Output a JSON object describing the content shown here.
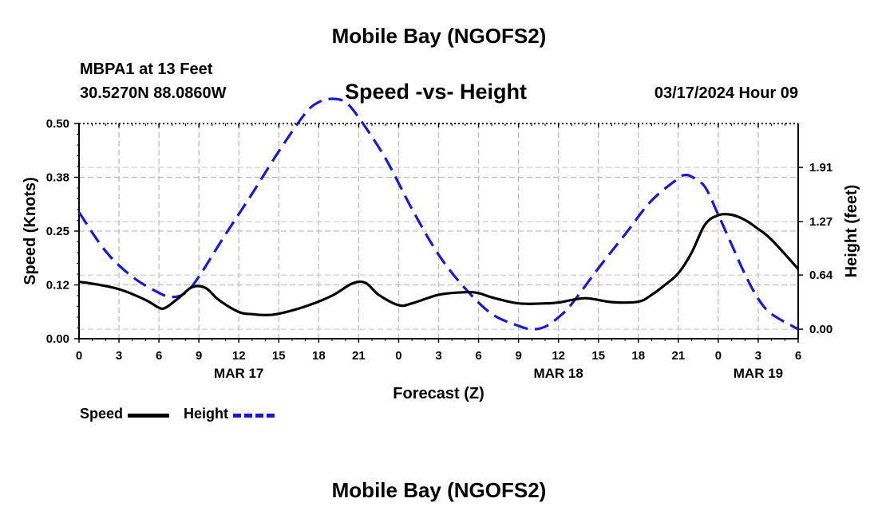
{
  "header": {
    "title": "Mobile Bay (NGOFS2)",
    "station": "MBPA1 at 13 Feet",
    "coords": "30.5270N  88.0860W",
    "datetime": "03/17/2024 Hour 09",
    "footer_title": "Mobile Bay (NGOFS2)"
  },
  "chart_data": {
    "type": "line",
    "title": "Speed -vs- Height",
    "xlabel": "Forecast (Z)",
    "ylabel": "Speed (Knots)",
    "y2label": "Height (feet)",
    "x_hours_range": [
      0,
      54
    ],
    "x_tick_step_hours": 3,
    "x_tick_labels": [
      "0",
      "3",
      "6",
      "9",
      "12",
      "15",
      "18",
      "21",
      "0",
      "3",
      "6",
      "9",
      "12",
      "15",
      "18",
      "21",
      "0",
      "3",
      "6"
    ],
    "date_labels": [
      {
        "label": "MAR 17",
        "hour": 12
      },
      {
        "label": "MAR 18",
        "hour": 36
      },
      {
        "label": "MAR 19",
        "hour": 51
      }
    ],
    "ylim": [
      0,
      0.5
    ],
    "y_tick_values": [
      0,
      0.125,
      0.25,
      0.375,
      0.5
    ],
    "y_tick_labels": [
      "0.00",
      "0.12",
      "0.25",
      "0.38",
      "0.50"
    ],
    "y2_tick_values": [
      0,
      0.64,
      1.27,
      1.91
    ],
    "y2_tick_labels": [
      "0.00",
      "0.64",
      "1.27",
      "1.91"
    ],
    "y2_zero_at_speed": 0.022,
    "y2_feet_per_knot": 5.08,
    "grid": true,
    "legend": "bottom-left",
    "series": [
      {
        "name": "Speed",
        "color": "#000000",
        "style": "solid",
        "x": [
          0,
          1,
          3,
          5,
          6,
          6.5,
          7.5,
          8.5,
          9.5,
          10.5,
          12,
          13,
          14,
          15,
          17,
          19,
          20.5,
          21.5,
          22.5,
          24,
          25,
          27,
          29,
          30,
          31,
          33,
          35,
          36,
          38,
          40,
          42,
          43,
          44,
          45,
          46,
          47,
          48,
          49,
          50,
          51,
          52,
          54
        ],
        "y": [
          0.132,
          0.128,
          0.115,
          0.09,
          0.072,
          0.072,
          0.095,
          0.12,
          0.118,
          0.09,
          0.062,
          0.057,
          0.055,
          0.058,
          0.075,
          0.1,
          0.128,
          0.13,
          0.102,
          0.078,
          0.082,
          0.102,
          0.108,
          0.106,
          0.096,
          0.082,
          0.082,
          0.084,
          0.094,
          0.085,
          0.086,
          0.102,
          0.125,
          0.152,
          0.2,
          0.265,
          0.287,
          0.288,
          0.276,
          0.255,
          0.23,
          0.162
        ]
      },
      {
        "name": "Height",
        "color": "#1a1acd",
        "style": "dashed",
        "x": [
          0,
          2,
          4,
          6,
          7,
          8,
          9,
          11,
          13,
          15,
          17,
          18,
          19,
          20,
          21,
          23,
          25,
          27,
          29,
          31,
          33,
          34,
          35,
          36,
          37,
          39,
          41,
          43,
          45,
          45.5,
          46,
          47,
          48,
          49,
          50,
          51,
          52,
          54
        ],
        "y": [
          1.38,
          0.92,
          0.62,
          0.43,
          0.38,
          0.43,
          0.62,
          1.12,
          1.6,
          2.1,
          2.55,
          2.68,
          2.72,
          2.68,
          2.5,
          2.02,
          1.42,
          0.88,
          0.48,
          0.18,
          0.04,
          0.0,
          0.03,
          0.14,
          0.3,
          0.72,
          1.12,
          1.52,
          1.78,
          1.82,
          1.8,
          1.68,
          1.35,
          1.0,
          0.65,
          0.36,
          0.18,
          0.0
        ]
      }
    ]
  }
}
